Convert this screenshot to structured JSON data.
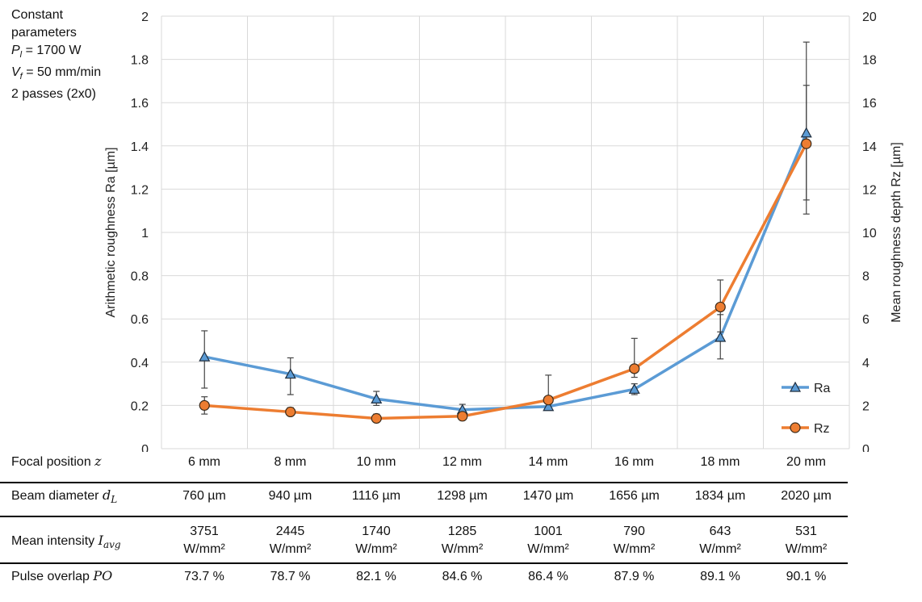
{
  "params": {
    "line1": "Constant",
    "line2": "parameters",
    "pl_value": "= 1700 W",
    "vf_value": "= 50 mm/min",
    "passes": "2 passes (2x0)"
  },
  "chart_data": {
    "type": "line",
    "categories": [
      "6 mm",
      "8 mm",
      "10 mm",
      "12 mm",
      "14 mm",
      "16 mm",
      "18 mm",
      "20 mm"
    ],
    "ylabel": "Arithmetic roughness Ra [µm]",
    "y2label": "Mean roughness depth Rz [µm]",
    "ylim": [
      0,
      2
    ],
    "y2lim": [
      0,
      20
    ],
    "yticks": [
      "0",
      "0.2",
      "0.4",
      "0.6",
      "0.8",
      "1",
      "1.2",
      "1.4",
      "1.6",
      "1.8",
      "2"
    ],
    "y2ticks": [
      "0",
      "2",
      "4",
      "6",
      "8",
      "10",
      "12",
      "14",
      "16",
      "18",
      "20"
    ],
    "grid": true,
    "legend_position": "right",
    "series": [
      {
        "name": "Ra",
        "axis": "left",
        "color": "#5b9bd5",
        "marker": "triangle",
        "values": [
          0.425,
          0.345,
          0.23,
          0.18,
          0.195,
          0.275,
          0.515,
          1.46
        ],
        "err_low": [
          0.28,
          0.25,
          0.2,
          0.17,
          0.18,
          0.25,
          0.415,
          1.085
        ],
        "err_high": [
          0.545,
          0.42,
          0.265,
          0.205,
          0.21,
          0.3,
          0.62,
          1.88
        ]
      },
      {
        "name": "Rz",
        "axis": "right",
        "color": "#ed7d31",
        "marker": "circle",
        "values": [
          2.0,
          1.7,
          1.4,
          1.5,
          2.25,
          3.7,
          6.55,
          14.1
        ],
        "err_low": [
          1.6,
          1.55,
          1.25,
          1.4,
          1.9,
          3.3,
          5.4,
          11.5
        ],
        "err_high": [
          2.4,
          1.9,
          1.6,
          1.6,
          3.4,
          5.1,
          7.8,
          16.8
        ]
      }
    ]
  },
  "table": {
    "rows": [
      {
        "label": "Focal position ",
        "label_sym": "z",
        "cells": [
          "6 mm",
          "8 mm",
          "10 mm",
          "12 mm",
          "14 mm",
          "16 mm",
          "18 mm",
          "20 mm"
        ]
      },
      {
        "label": "Beam diameter ",
        "label_sym": "d",
        "label_sub": "L",
        "cells": [
          "760 µm",
          "940 µm",
          "1116 µm",
          "1298 µm",
          "1470 µm",
          "1656 µm",
          "1834 µm",
          "2020 µm"
        ]
      },
      {
        "label": "Mean intensity ",
        "label_sym": "I",
        "label_sub": "avg",
        "cells": [
          "3751",
          "2445",
          "1740",
          "1285",
          "1001",
          "790",
          "643",
          "531"
        ],
        "cells2": [
          "W/mm²",
          "W/mm²",
          "W/mm²",
          "W/mm²",
          "W/mm²",
          "W/mm²",
          "W/mm²",
          "W/mm²"
        ]
      },
      {
        "label": "Pulse overlap ",
        "label_sym": "PO",
        "cells": [
          "73.7 %",
          "78.7 %",
          "82.1 %",
          "84.6 %",
          "86.4 %",
          "87.9 %",
          "89.1 %",
          "90.1 %"
        ]
      }
    ]
  }
}
